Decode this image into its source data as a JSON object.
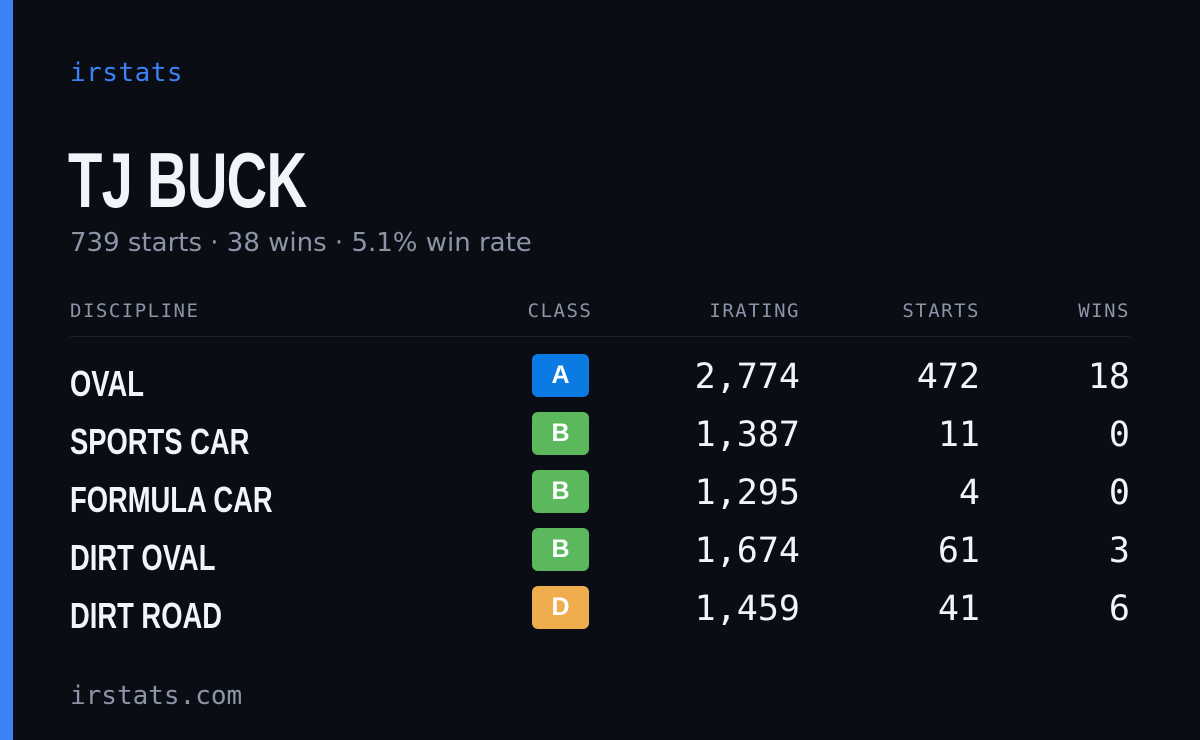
{
  "brand": "irstats",
  "driver": {
    "name": "TJ BUCK",
    "summary": "739 starts · 38 wins · 5.1% win rate"
  },
  "table": {
    "headers": {
      "discipline": "DISCIPLINE",
      "class": "CLASS",
      "irating": "IRATING",
      "starts": "STARTS",
      "wins": "WINS"
    },
    "rows": [
      {
        "discipline": "OVAL",
        "class": "A",
        "class_color": "#0b7ae3",
        "irating": "2,774",
        "starts": "472",
        "wins": "18"
      },
      {
        "discipline": "SPORTS CAR",
        "class": "B",
        "class_color": "#5cb85c",
        "irating": "1,387",
        "starts": "11",
        "wins": "0"
      },
      {
        "discipline": "FORMULA CAR",
        "class": "B",
        "class_color": "#5cb85c",
        "irating": "1,295",
        "starts": "4",
        "wins": "0"
      },
      {
        "discipline": "DIRT OVAL",
        "class": "B",
        "class_color": "#5cb85c",
        "irating": "1,674",
        "starts": "61",
        "wins": "3"
      },
      {
        "discipline": "DIRT ROAD",
        "class": "D",
        "class_color": "#f0ad4e",
        "irating": "1,459",
        "starts": "41",
        "wins": "6"
      }
    ]
  },
  "footer": "irstats.com",
  "colors": {
    "background": "#0a0d14",
    "accent": "#3b82f6",
    "text": "#f1f5f9",
    "muted": "#8b95a7"
  }
}
